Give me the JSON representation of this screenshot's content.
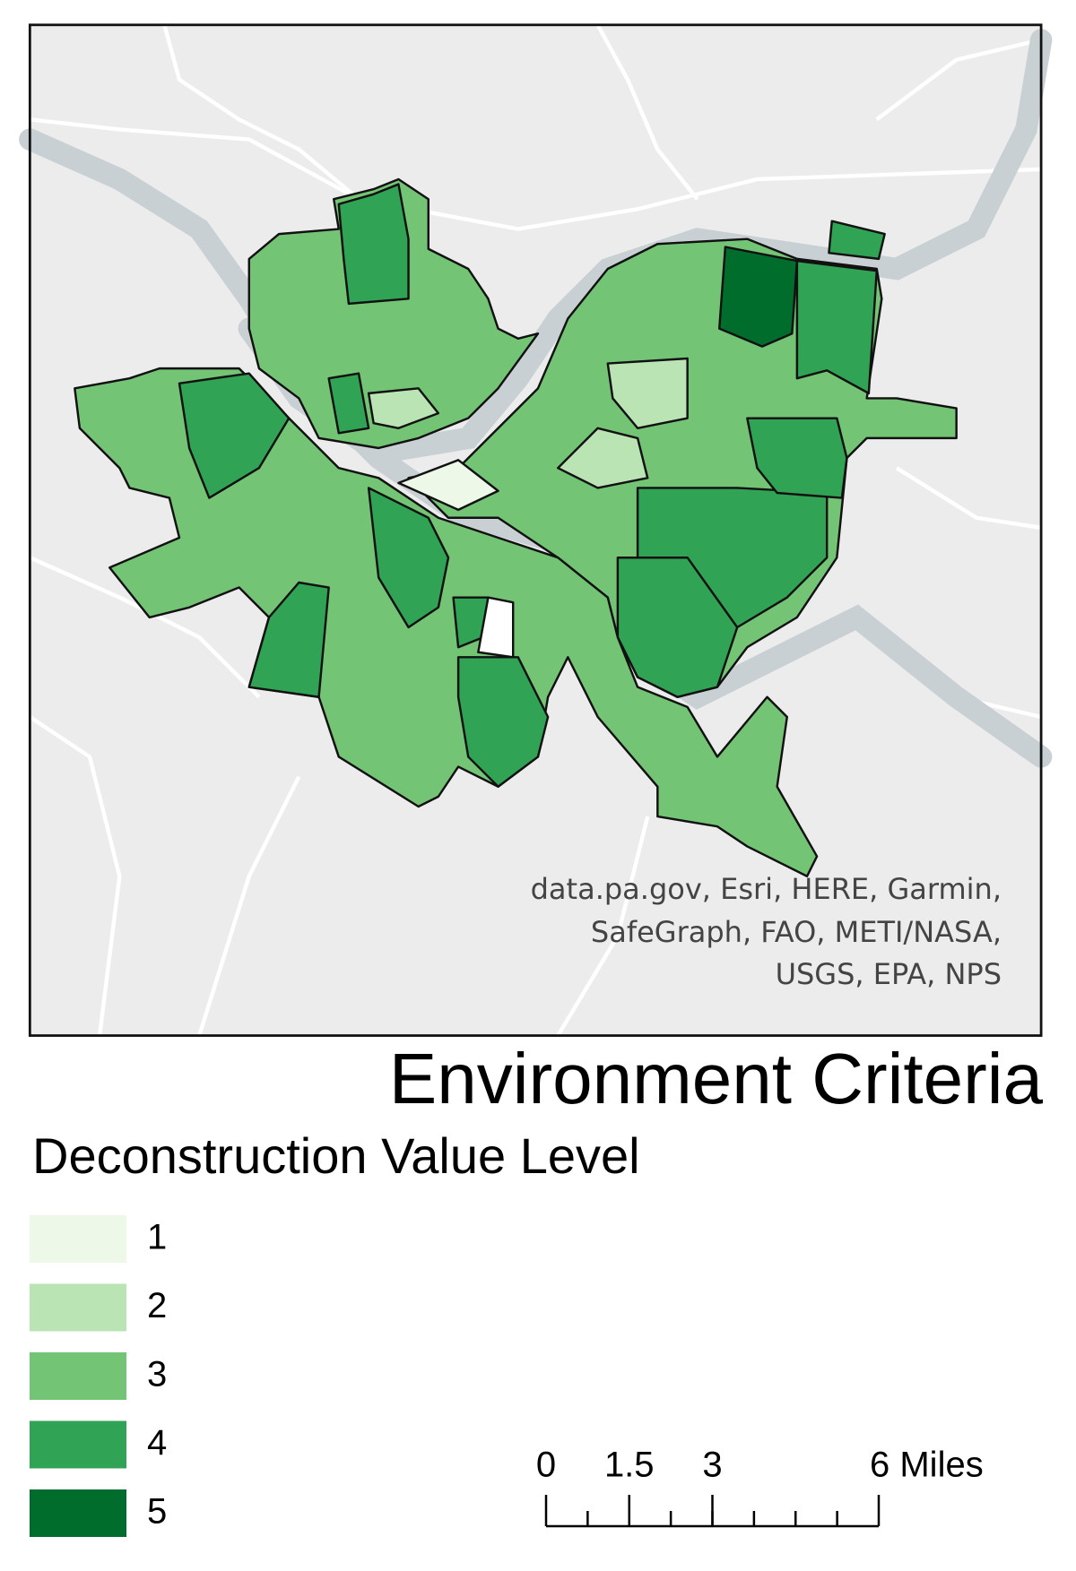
{
  "title": "Environment Criteria",
  "attribution": [
    "data.pa.gov, Esri, HERE, Garmin,",
    "SafeGraph, FAO, METI/NASA,",
    "USGS, EPA, NPS"
  ],
  "legend": {
    "title": "Deconstruction Value Level",
    "items": [
      {
        "label": 1,
        "color": "#edf8e9"
      },
      {
        "label": 2,
        "color": "#bae4b3"
      },
      {
        "label": 3,
        "color": "#74c476"
      },
      {
        "label": 4,
        "color": "#31a354"
      },
      {
        "label": 5,
        "color": "#006d2c"
      }
    ]
  },
  "scale_bar": {
    "ticks": [
      0,
      1.5,
      3,
      {
        "value": 6,
        "label": "6 Miles"
      }
    ]
  }
}
